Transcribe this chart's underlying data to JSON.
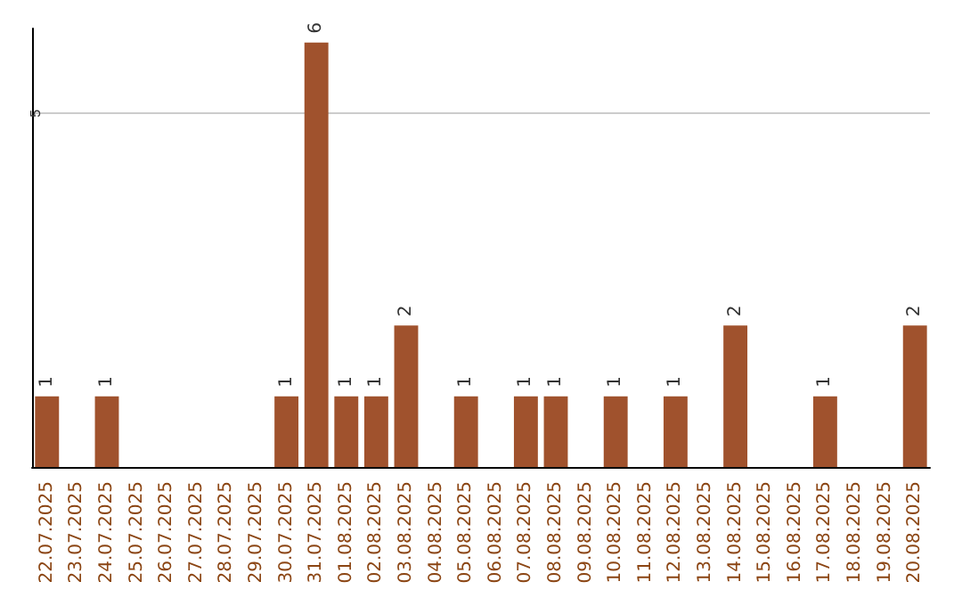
{
  "chart_data": {
    "type": "bar",
    "categories": [
      "22.07.2025",
      "23.07.2025",
      "24.07.2025",
      "25.07.2025",
      "26.07.2025",
      "27.07.2025",
      "28.07.2025",
      "29.07.2025",
      "30.07.2025",
      "31.07.2025",
      "01.08.2025",
      "02.08.2025",
      "03.08.2025",
      "04.08.2025",
      "05.08.2025",
      "06.08.2025",
      "07.08.2025",
      "08.08.2025",
      "09.08.2025",
      "10.08.2025",
      "11.08.2025",
      "12.08.2025",
      "13.08.2025",
      "14.08.2025",
      "15.08.2025",
      "16.08.2025",
      "17.08.2025",
      "18.08.2025",
      "19.08.2025",
      "20.08.2025"
    ],
    "values": [
      1,
      0,
      1,
      0,
      0,
      0,
      0,
      0,
      1,
      6,
      1,
      1,
      2,
      0,
      1,
      0,
      1,
      1,
      0,
      1,
      0,
      1,
      0,
      2,
      0,
      0,
      1,
      0,
      0,
      2
    ],
    "value_labels": [
      "1",
      null,
      "1",
      null,
      null,
      null,
      null,
      null,
      "1",
      "6",
      "1",
      "1",
      "2",
      null,
      "1",
      null,
      "1",
      "1",
      null,
      "1",
      null,
      "1",
      null,
      "2",
      null,
      null,
      "1",
      null,
      null,
      "2"
    ],
    "color": "#a0522d",
    "ylim": [
      0,
      6.2
    ],
    "yticks": [
      5
    ],
    "grid": "y"
  }
}
